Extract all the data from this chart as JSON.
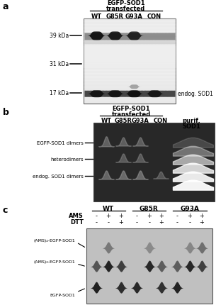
{
  "panel_a": {
    "label": "a",
    "col_labels": [
      "WT",
      "G85R",
      "G93A",
      "CON"
    ],
    "mw_labels": [
      "39 kDa",
      "31 kDa",
      "17 kDa"
    ],
    "side_label": "endog. SOD1"
  },
  "panel_b": {
    "label": "b",
    "col_labels": [
      "WT",
      "G85R",
      "G93A",
      "CON",
      "purif.\nSOD1"
    ],
    "row_labels": [
      "EGFP-SOD1 dimers",
      "heterodimers",
      "endog. SOD1 dimers"
    ]
  },
  "panel_c": {
    "label": "c",
    "groups": [
      "WT",
      "G85R",
      "G93A"
    ],
    "ams_vals": [
      "-",
      "+",
      "+",
      "-",
      "+",
      "+",
      "-",
      "+",
      "+"
    ],
    "dtt_vals": [
      "-",
      "-",
      "+",
      "-",
      "-",
      "+",
      "-",
      "-",
      "+"
    ],
    "band_labels": [
      "(AMS)₄-EGFP-SOD1",
      "(AMS)₂-EGFP-SOD1",
      "EGFP-SOD1"
    ]
  }
}
